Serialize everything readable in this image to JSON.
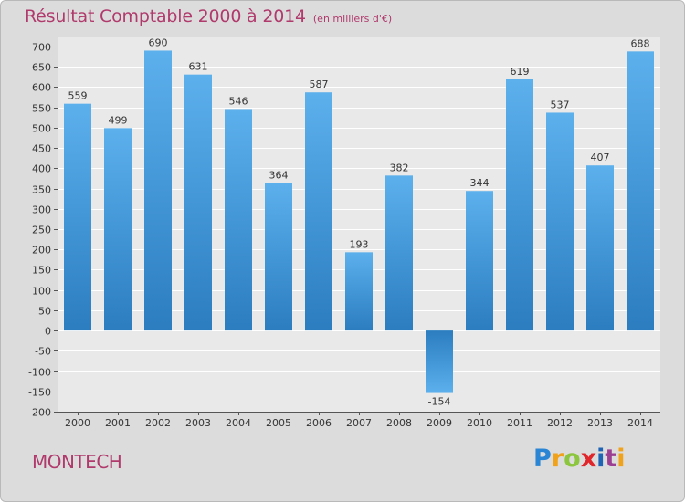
{
  "header": {
    "title": "Résultat Comptable 2000 à 2014",
    "unit": "(en milliers d'€)"
  },
  "footer": {
    "commune": "MONTECH",
    "logo_letters": [
      "P",
      "r",
      "o",
      "x",
      "i",
      "t",
      "i"
    ]
  },
  "colors": {
    "title": "#b03a6c",
    "bar_top": "#5aaeea",
    "bar_bottom": "#2a7cbf",
    "background": "#dcdcdc",
    "plot_background": "#e9e9e9"
  },
  "chart_data": {
    "type": "bar",
    "title": "Résultat Comptable 2000 à 2014",
    "subtitle": "(en milliers d'€)",
    "xlabel": "",
    "ylabel": "",
    "categories": [
      "2000",
      "2001",
      "2002",
      "2003",
      "2004",
      "2005",
      "2006",
      "2007",
      "2008",
      "2009",
      "2010",
      "2011",
      "2012",
      "2013",
      "2014"
    ],
    "values": [
      559,
      499,
      690,
      631,
      546,
      364,
      587,
      193,
      382,
      -154,
      344,
      619,
      537,
      407,
      688
    ],
    "value_labels": [
      "559",
      "499",
      "690",
      "631",
      "546",
      "364",
      "587",
      "193",
      "382",
      "-154",
      "344",
      "619",
      "537",
      "407",
      "688"
    ],
    "ylim": [
      -200,
      700
    ],
    "yticks": [
      -200,
      -150,
      -100,
      -50,
      0,
      50,
      100,
      150,
      200,
      250,
      300,
      350,
      400,
      450,
      500,
      550,
      600,
      650,
      700
    ],
    "ytick_labels": [
      "-200",
      "-150",
      "-100",
      "-50",
      "0",
      "50",
      "100",
      "150",
      "200",
      "250",
      "300",
      "350",
      "400",
      "450",
      "500",
      "550",
      "600",
      "650",
      "700"
    ],
    "grid": true,
    "legend": "none"
  }
}
